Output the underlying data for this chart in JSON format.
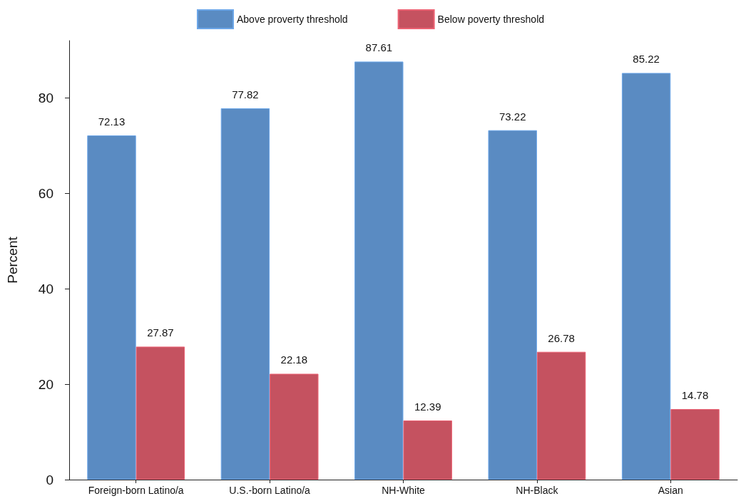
{
  "chart_data": {
    "type": "bar",
    "ylabel": "Percent",
    "categories": [
      "Foreign-born Latino/a",
      "U.S.-born Latino/a",
      "NH-White",
      "NH-Black",
      "Asian"
    ],
    "series": [
      {
        "name": "Above proverty threshold",
        "color": "#5a8bc2",
        "values": [
          72.13,
          77.82,
          87.61,
          73.22,
          85.22
        ]
      },
      {
        "name": "Below poverty threshold",
        "color": "#c55260",
        "values": [
          27.87,
          22.18,
          12.39,
          26.78,
          14.78
        ]
      }
    ],
    "ylim": [
      0,
      92
    ],
    "yticks": [
      0,
      20,
      40,
      60,
      80
    ],
    "grid": false,
    "legend": "top",
    "data_labels": true
  }
}
